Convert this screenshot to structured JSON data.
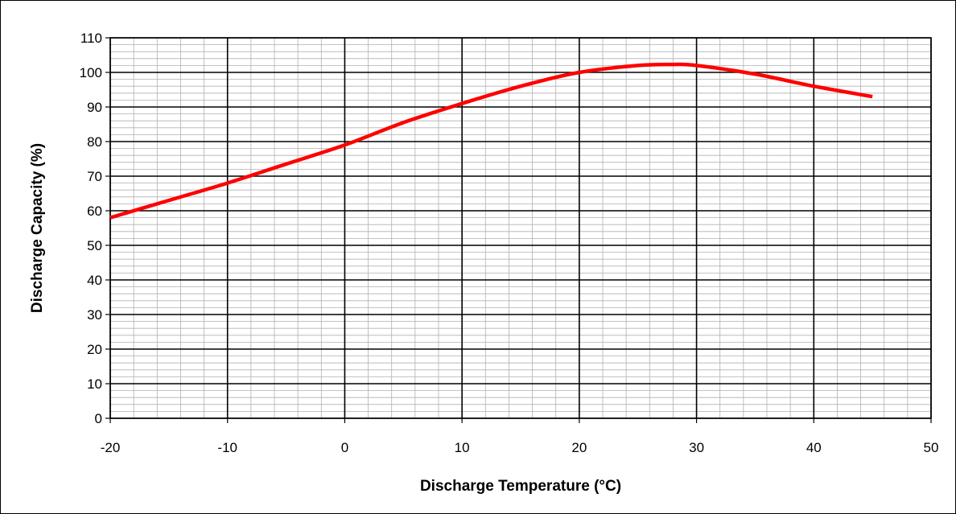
{
  "chart_data": {
    "type": "line",
    "title": "",
    "xlabel": "Discharge Temperature (°C)",
    "ylabel": "Discharge Capacity (%)",
    "xlim": [
      -20,
      50
    ],
    "ylim": [
      0,
      110
    ],
    "x_ticks": [
      -20,
      -10,
      0,
      10,
      20,
      30,
      40,
      50
    ],
    "y_ticks": [
      0,
      10,
      20,
      30,
      40,
      50,
      60,
      70,
      80,
      90,
      100,
      110
    ],
    "grid": true,
    "legend": "none",
    "series": [
      {
        "color": "#ff0000",
        "x": [
          -20,
          -15,
          -10,
          -5,
          0,
          5,
          10,
          15,
          20,
          25,
          28,
          30,
          35,
          40,
          45
        ],
        "y": [
          58,
          63,
          68,
          73.5,
          79,
          85.5,
          91,
          96,
          100,
          102,
          102.3,
          102,
          99.5,
          96,
          93
        ]
      }
    ]
  }
}
